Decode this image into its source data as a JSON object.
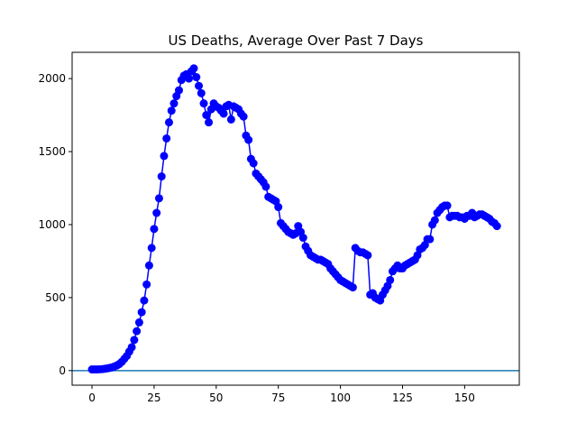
{
  "chart_data": {
    "type": "line",
    "title": "US Deaths, Average Over Past 7 Days",
    "xlabel": "",
    "ylabel": "",
    "xlim": [
      -8,
      172
    ],
    "ylim": [
      -100,
      2180
    ],
    "xticks": [
      0,
      25,
      50,
      75,
      100,
      125,
      150
    ],
    "yticks": [
      0,
      500,
      1000,
      1500,
      2000
    ],
    "grid": false,
    "legend": "none",
    "hline": {
      "y": 0,
      "color": "#1f77b4"
    },
    "series": [
      {
        "color": "#0000ff",
        "marker": "circle",
        "values": [
          8,
          8,
          8,
          9,
          10,
          12,
          15,
          18,
          22,
          28,
          35,
          45,
          60,
          80,
          100,
          130,
          160,
          210,
          270,
          330,
          400,
          480,
          590,
          720,
          840,
          970,
          1080,
          1180,
          1330,
          1470,
          1590,
          1700,
          1780,
          1830,
          1880,
          1920,
          1990,
          2020,
          2030,
          2000,
          2050,
          2070,
          2010,
          1950,
          1900,
          1830,
          1750,
          1700,
          1790,
          1830,
          1810,
          1800,
          1780,
          1760,
          1810,
          1820,
          1720,
          1810,
          1800,
          1790,
          1760,
          1740,
          1610,
          1580,
          1450,
          1420,
          1350,
          1330,
          1310,
          1290,
          1260,
          1190,
          1180,
          1170,
          1160,
          1120,
          1010,
          990,
          970,
          950,
          940,
          930,
          940,
          990,
          950,
          910,
          850,
          820,
          790,
          780,
          770,
          760,
          760,
          750,
          740,
          730,
          700,
          680,
          660,
          640,
          620,
          610,
          600,
          590,
          580,
          570,
          840,
          820,
          810,
          810,
          800,
          790,
          520,
          530,
          500,
          490,
          480,
          520,
          550,
          580,
          620,
          680,
          700,
          720,
          700,
          700,
          720,
          730,
          740,
          750,
          760,
          790,
          830,
          840,
          860,
          900,
          900,
          1000,
          1030,
          1080,
          1100,
          1120,
          1130,
          1130,
          1050,
          1060,
          1060,
          1060,
          1050,
          1050,
          1040,
          1060,
          1060,
          1080,
          1050,
          1060,
          1070,
          1070,
          1060,
          1050,
          1040,
          1020,
          1010,
          990
        ]
      }
    ]
  }
}
